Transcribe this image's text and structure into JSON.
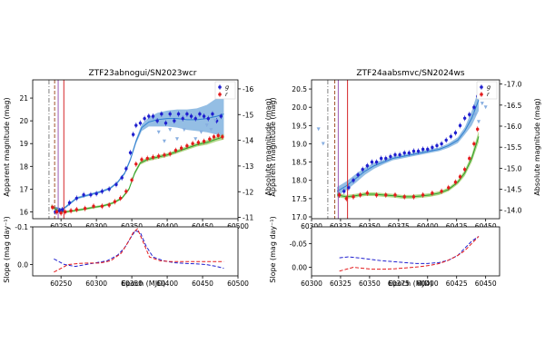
{
  "chart_data": [
    {
      "type": "scatter",
      "title": "ZTF23abnogui/SN2023wcr",
      "ylabel": "Apparent magnitude (mag)",
      "y2label": "Absolute magnitude (mag)",
      "xlim": [
        60210,
        60500
      ],
      "ylim": [
        21.8,
        15.7
      ],
      "y2lim": [
        -16.35,
        -10.95
      ],
      "xticks": [
        "60250",
        "60300",
        "60350",
        "60400",
        "60450",
        "60500"
      ],
      "yticks": [
        "16",
        "17",
        "18",
        "19",
        "20",
        "21"
      ],
      "y2ticks": [
        "-16",
        "-15",
        "-14",
        "-13",
        "-12",
        "-11"
      ],
      "legend": {
        "position": "top-right",
        "entries": [
          "g",
          "r"
        ]
      },
      "vlines": [
        {
          "x": 60233,
          "color": "#808080",
          "style": "dashdot"
        },
        {
          "x": 60241,
          "color": "#a0522d",
          "style": "dashed"
        },
        {
          "x": 60246,
          "color": "#9b59b6",
          "style": "solid"
        },
        {
          "x": 60254,
          "color": "#d62728",
          "style": "solid"
        }
      ],
      "series": [
        {
          "name": "g",
          "color": "#1f1fcf",
          "x": [
            60242,
            60248,
            60252,
            60262,
            60272,
            60282,
            60292,
            60300,
            60308,
            60318,
            60328,
            60336,
            60342,
            60348,
            60352,
            60356,
            60362,
            60368,
            60374,
            60380,
            60386,
            60392,
            60398,
            60404,
            60410,
            60416,
            60422,
            60428,
            60434,
            60440,
            60446,
            60452,
            60458,
            60464,
            60470,
            60476
          ],
          "y": [
            16.0,
            16.05,
            16.1,
            16.4,
            16.6,
            16.75,
            16.75,
            16.8,
            16.9,
            17.0,
            17.2,
            17.5,
            17.9,
            18.6,
            19.4,
            19.8,
            19.9,
            20.1,
            20.2,
            20.2,
            20.0,
            20.3,
            19.9,
            20.3,
            20.0,
            20.3,
            20.1,
            20.3,
            20.2,
            20.1,
            20.3,
            20.2,
            20.1,
            20.3,
            20.0,
            20.2
          ]
        },
        {
          "name": "r",
          "color": "#e31a1c",
          "x": [
            60238,
            60244,
            60250,
            60256,
            60264,
            60272,
            60284,
            60296,
            60308,
            60318,
            60326,
            60334,
            60342,
            60350,
            60356,
            60364,
            60372,
            60380,
            60388,
            60396,
            60404,
            60412,
            60420,
            60428,
            60436,
            60444,
            60452,
            60460,
            60466,
            60472,
            60478
          ],
          "y": [
            16.2,
            16.0,
            15.95,
            16.0,
            16.05,
            16.1,
            16.15,
            16.25,
            16.25,
            16.3,
            16.45,
            16.6,
            16.9,
            17.4,
            18.1,
            18.3,
            18.35,
            18.4,
            18.45,
            18.5,
            18.55,
            18.7,
            18.8,
            18.9,
            19.0,
            19.05,
            19.1,
            19.2,
            19.3,
            19.35,
            19.3
          ]
        },
        {
          "name": "g upper limits",
          "color": "#87aee0",
          "x": [
            60388,
            60396,
            60404,
            60414,
            60424,
            60440,
            60448,
            60456,
            60462,
            60468
          ],
          "y": [
            19.5,
            19.1,
            19.6,
            19.2,
            19.6,
            19.2,
            19.5,
            19.8,
            19.6,
            20.0
          ]
        }
      ],
      "model_fits": [
        {
          "name": "g model",
          "color": "#2f7fd0",
          "band_color": "#5b9bd5",
          "x": [
            60240,
            60252,
            60262,
            60272,
            60284,
            60296,
            60308,
            60320,
            60330,
            60340,
            60348,
            60356,
            60364,
            60374,
            60386,
            60400,
            60414,
            60428,
            60442,
            60456,
            60470,
            60480
          ],
          "y": [
            16.2,
            16.1,
            16.35,
            16.6,
            16.7,
            16.8,
            16.9,
            17.05,
            17.3,
            17.7,
            18.3,
            19.1,
            19.7,
            19.95,
            20.05,
            20.1,
            20.1,
            20.05,
            20.05,
            20.1,
            20.2,
            20.3
          ],
          "band": [
            0.05,
            0.05,
            0.05,
            0.05,
            0.05,
            0.05,
            0.05,
            0.05,
            0.05,
            0.06,
            0.08,
            0.1,
            0.15,
            0.2,
            0.3,
            0.35,
            0.4,
            0.45,
            0.5,
            0.6,
            0.8,
            1.0
          ]
        },
        {
          "name": "r model",
          "color": "#2ca02c",
          "band_color": "#8bc34a",
          "x": [
            60236,
            60246,
            60256,
            60268,
            60282,
            60296,
            60310,
            60324,
            60336,
            60346,
            60354,
            60362,
            60372,
            60386,
            60400,
            60414,
            60428,
            60442,
            60456,
            60470,
            60480
          ],
          "y": [
            16.25,
            16.05,
            16.0,
            16.05,
            16.12,
            16.2,
            16.27,
            16.4,
            16.6,
            17.0,
            17.7,
            18.15,
            18.3,
            18.4,
            18.5,
            18.65,
            18.8,
            18.95,
            19.05,
            19.2,
            19.3
          ],
          "band": [
            0.08,
            0.06,
            0.05,
            0.05,
            0.05,
            0.05,
            0.05,
            0.05,
            0.05,
            0.06,
            0.08,
            0.08,
            0.08,
            0.08,
            0.08,
            0.08,
            0.08,
            0.08,
            0.1,
            0.1,
            0.12
          ]
        }
      ]
    },
    {
      "type": "line",
      "xlabel": "Epoch (MJD)",
      "ylabel": "Slope (mag day⁻¹)",
      "xlim": [
        60210,
        60500
      ],
      "ylim": [
        -0.1,
        0.03
      ],
      "xticks": [
        "60250",
        "60300",
        "60350",
        "60400",
        "60450",
        "60500"
      ],
      "yticks": [
        "0.0",
        "-0.1"
      ],
      "series": [
        {
          "name": "g slope",
          "color": "#1f1fcf",
          "style": "dashed",
          "x": [
            60240,
            60255,
            60270,
            60285,
            60300,
            60315,
            60330,
            60340,
            60348,
            60355,
            60362,
            60370,
            60380,
            60395,
            60410,
            60425,
            60440,
            60455,
            60470,
            60480
          ],
          "y": [
            -0.015,
            0.0,
            0.005,
            0.0,
            -0.005,
            -0.01,
            -0.025,
            -0.045,
            -0.07,
            -0.09,
            -0.085,
            -0.05,
            -0.02,
            -0.01,
            -0.005,
            -0.003,
            -0.002,
            0.0,
            0.005,
            0.01
          ]
        },
        {
          "name": "r slope",
          "color": "#e31a1c",
          "style": "dashed",
          "x": [
            60240,
            60250,
            60260,
            60275,
            60290,
            60305,
            60320,
            60335,
            60345,
            60352,
            60358,
            60366,
            60375,
            60390,
            60405,
            60420,
            60440,
            60460,
            60480
          ],
          "y": [
            0.02,
            0.01,
            0.0,
            -0.003,
            -0.004,
            -0.004,
            -0.01,
            -0.03,
            -0.06,
            -0.085,
            -0.095,
            -0.06,
            -0.02,
            -0.01,
            -0.008,
            -0.008,
            -0.008,
            -0.008,
            -0.008
          ]
        }
      ]
    },
    {
      "type": "scatter",
      "title": "ZTF24aabsmvc/SN2024ws",
      "ylabel": "Apparent magnitude (mag)",
      "y2label": "Absolute magnitude (mag)",
      "xlim": [
        60300,
        60462
      ],
      "ylim": [
        20.75,
        16.95
      ],
      "y2lim": [
        -17.1,
        -13.8
      ],
      "xticks": [
        "60300",
        "60325",
        "60350",
        "60375",
        "60400",
        "60425",
        "60450"
      ],
      "yticks": [
        "17.0",
        "17.5",
        "18.0",
        "18.5",
        "19.0",
        "19.5",
        "20.0",
        "20.5"
      ],
      "y2ticks": [
        "-17.0",
        "-16.5",
        "-16.0",
        "-15.5",
        "-15.0",
        "-14.5",
        "-14.0"
      ],
      "legend": {
        "position": "top-right",
        "entries": [
          "g",
          "r"
        ]
      },
      "vlines": [
        {
          "x": 60314,
          "color": "#808080",
          "style": "dashdot"
        },
        {
          "x": 60320,
          "color": "#a0522d",
          "style": "dashed"
        },
        {
          "x": 60323,
          "color": "#9b59b6",
          "style": "solid"
        },
        {
          "x": 60331,
          "color": "#d62728",
          "style": "solid"
        }
      ],
      "series": [
        {
          "name": "g",
          "color": "#1f1fcf",
          "x": [
            60324,
            60328,
            60332,
            60336,
            60340,
            60344,
            60348,
            60352,
            60356,
            60360,
            60364,
            60368,
            60372,
            60376,
            60380,
            60384,
            60388,
            60392,
            60396,
            60400,
            60404,
            60408,
            60412,
            60416,
            60420,
            60424,
            60428,
            60432,
            60436,
            60440,
            60443
          ],
          "y": [
            17.6,
            17.7,
            17.8,
            18.0,
            18.15,
            18.3,
            18.4,
            18.5,
            18.5,
            18.6,
            18.6,
            18.65,
            18.7,
            18.7,
            18.75,
            18.75,
            18.8,
            18.8,
            18.85,
            18.85,
            18.9,
            18.95,
            19.0,
            19.1,
            19.2,
            19.3,
            19.5,
            19.7,
            19.8,
            20.0,
            20.3
          ]
        },
        {
          "name": "r",
          "color": "#e31a1c",
          "x": [
            60324,
            60330,
            60336,
            60342,
            60348,
            60356,
            60364,
            60372,
            60380,
            60388,
            60396,
            60404,
            60412,
            60418,
            60424,
            60428,
            60432,
            60436,
            60440,
            60443
          ],
          "y": [
            17.6,
            17.5,
            17.55,
            17.6,
            17.65,
            17.6,
            17.6,
            17.6,
            17.55,
            17.55,
            17.6,
            17.65,
            17.7,
            17.8,
            17.95,
            18.1,
            18.3,
            18.6,
            19.0,
            19.4
          ]
        },
        {
          "name": "g upper limits",
          "color": "#87aee0",
          "x": [
            60306,
            60310,
            60441,
            60444,
            60447,
            60450,
            60453
          ],
          "y": [
            19.4,
            19.0,
            19.8,
            19.6,
            20.1,
            20.0,
            20.4
          ]
        }
      ],
      "model_fits": [
        {
          "name": "g model",
          "color": "#2f7fd0",
          "band_color": "#5b9bd5",
          "x": [
            60322,
            60330,
            60338,
            60346,
            60354,
            60362,
            60370,
            60378,
            60386,
            60394,
            60402,
            60410,
            60418,
            60426,
            60432,
            60438,
            60444
          ],
          "y": [
            17.7,
            17.85,
            18.05,
            18.25,
            18.4,
            18.5,
            18.6,
            18.65,
            18.7,
            18.75,
            18.8,
            18.85,
            18.95,
            19.1,
            19.35,
            19.7,
            20.2
          ],
          "band": [
            0.12,
            0.12,
            0.12,
            0.1,
            0.08,
            0.06,
            0.05,
            0.05,
            0.05,
            0.05,
            0.05,
            0.05,
            0.06,
            0.08,
            0.1,
            0.2,
            0.3
          ]
        },
        {
          "name": "r model",
          "color": "#2ca02c",
          "band_color": "#8bc34a",
          "x": [
            60322,
            60330,
            60338,
            60346,
            60354,
            60362,
            60370,
            60378,
            60386,
            60394,
            60402,
            60410,
            60418,
            60426,
            60432,
            60438,
            60444
          ],
          "y": [
            17.6,
            17.55,
            17.58,
            17.62,
            17.62,
            17.6,
            17.58,
            17.55,
            17.55,
            17.57,
            17.6,
            17.65,
            17.75,
            17.95,
            18.2,
            18.6,
            19.2
          ],
          "band": [
            0.06,
            0.05,
            0.05,
            0.05,
            0.05,
            0.05,
            0.05,
            0.05,
            0.05,
            0.05,
            0.05,
            0.05,
            0.05,
            0.06,
            0.08,
            0.1,
            0.15
          ]
        }
      ]
    },
    {
      "type": "line",
      "xlabel": "Epoch (MJD)",
      "ylabel": "Slope (mag day⁻¹)",
      "xlim": [
        60300,
        60462
      ],
      "ylim": [
        -0.085,
        0.018
      ],
      "xticks": [
        "60300",
        "60325",
        "60350",
        "60375",
        "60400",
        "60425",
        "60450"
      ],
      "yticks": [
        "0.00",
        "-0.05"
      ],
      "series": [
        {
          "name": "g slope",
          "color": "#1f1fcf",
          "style": "dashed",
          "x": [
            60324,
            60332,
            60340,
            60350,
            60360,
            60370,
            60380,
            60390,
            60400,
            60410,
            60418,
            60426,
            60432,
            60438,
            60444
          ],
          "y": [
            -0.02,
            -0.022,
            -0.02,
            -0.017,
            -0.014,
            -0.012,
            -0.01,
            -0.008,
            -0.008,
            -0.01,
            -0.015,
            -0.025,
            -0.04,
            -0.055,
            -0.065
          ]
        },
        {
          "name": "r slope",
          "color": "#e31a1c",
          "style": "dashed",
          "x": [
            60324,
            60330,
            60336,
            60344,
            60352,
            60362,
            60372,
            60382,
            60392,
            60402,
            60410,
            60418,
            60426,
            60432,
            60438,
            60444
          ],
          "y": [
            0.008,
            0.004,
            0.0,
            0.002,
            0.004,
            0.004,
            0.003,
            0.001,
            -0.001,
            -0.004,
            -0.008,
            -0.015,
            -0.025,
            -0.035,
            -0.05,
            -0.065
          ]
        }
      ]
    }
  ]
}
